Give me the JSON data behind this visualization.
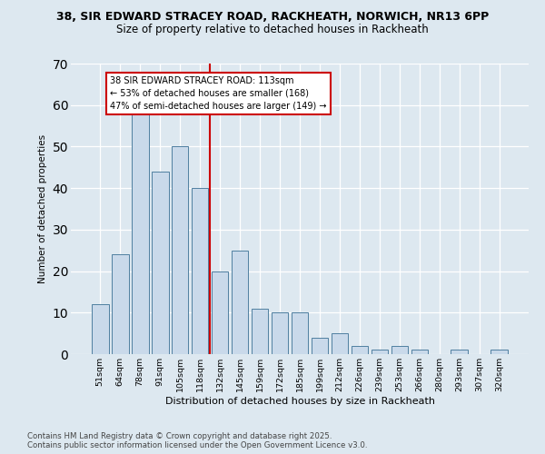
{
  "title_line1": "38, SIR EDWARD STRACEY ROAD, RACKHEATH, NORWICH, NR13 6PP",
  "title_line2": "Size of property relative to detached houses in Rackheath",
  "xlabel": "Distribution of detached houses by size in Rackheath",
  "ylabel": "Number of detached properties",
  "categories": [
    "51sqm",
    "64sqm",
    "78sqm",
    "91sqm",
    "105sqm",
    "118sqm",
    "132sqm",
    "145sqm",
    "159sqm",
    "172sqm",
    "185sqm",
    "199sqm",
    "212sqm",
    "226sqm",
    "239sqm",
    "253sqm",
    "266sqm",
    "280sqm",
    "293sqm",
    "307sqm",
    "320sqm"
  ],
  "values": [
    12,
    24,
    59,
    44,
    50,
    40,
    20,
    25,
    11,
    10,
    10,
    4,
    5,
    2,
    1,
    2,
    1,
    0,
    1,
    0,
    1
  ],
  "bar_color": "#c9d9ea",
  "bar_edge_color": "#4f7fa0",
  "vline_x": 5.5,
  "vline_color": "#cc0000",
  "annotation_text": "38 SIR EDWARD STRACEY ROAD: 113sqm\n← 53% of detached houses are smaller (168)\n47% of semi-detached houses are larger (149) →",
  "annotation_box_facecolor": "#ffffff",
  "annotation_box_edgecolor": "#cc0000",
  "ylim": [
    0,
    70
  ],
  "yticks": [
    0,
    10,
    20,
    30,
    40,
    50,
    60,
    70
  ],
  "fig_facecolor": "#dde8f0",
  "ax_facecolor": "#dde8f0",
  "grid_color": "#ffffff",
  "footer_line1": "Contains HM Land Registry data © Crown copyright and database right 2025.",
  "footer_line2": "Contains public sector information licensed under the Open Government Licence v3.0."
}
